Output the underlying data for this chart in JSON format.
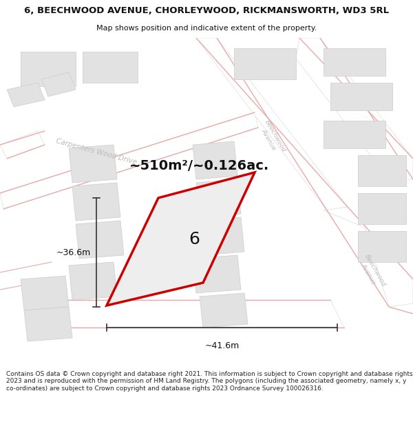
{
  "title_line1": "6, BEECHWOOD AVENUE, CHORLEYWOOD, RICKMANSWORTH, WD3 5RL",
  "title_line2": "Map shows position and indicative extent of the property.",
  "area_text": "~510m²/~0.126ac.",
  "width_label": "~41.6m",
  "height_label": "~36.6m",
  "property_number": "6",
  "footer_text": "Contains OS data © Crown copyright and database right 2021. This information is subject to Crown copyright and database rights 2023 and is reproduced with the permission of HM Land Registry. The polygons (including the associated geometry, namely x, y co-ordinates) are subject to Crown copyright and database rights 2023 Ordnance Survey 100026316.",
  "bg_color": "#ffffff",
  "map_bg": "#f2f2f2",
  "road_fill": "#ffffff",
  "road_edge": "#dddddd",
  "building_fill": "#e2e2e2",
  "building_edge": "#cccccc",
  "property_fill": "#eeeeee",
  "property_outline": "#cc0000",
  "pink_line": "#e8aaaa",
  "street_label_color": "#bbbbbb",
  "dim_line_color": "#333333",
  "text_color": "#111111",
  "footer_color": "#222222",
  "title_fontsize": 9.5,
  "subtitle_fontsize": 8.0,
  "footer_fontsize": 6.5,
  "area_fontsize": 14,
  "dim_fontsize": 9,
  "property_num_fontsize": 18,
  "street_fontsize": 7.5
}
